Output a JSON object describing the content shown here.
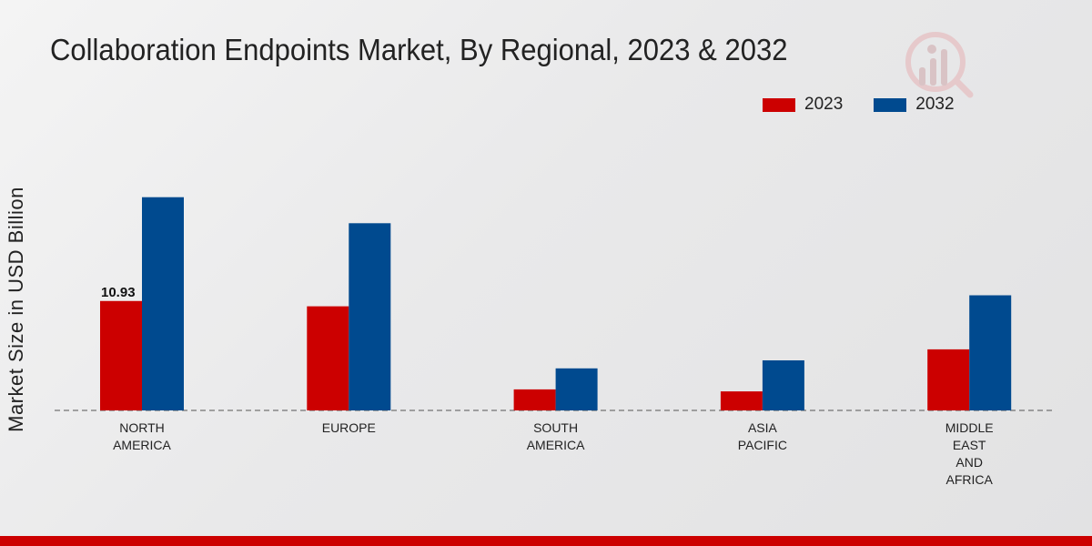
{
  "chart_data": {
    "type": "bar",
    "title": "Collaboration Endpoints Market, By Regional, 2023 & 2032",
    "xlabel": "",
    "ylabel": "Market Size in USD Billion",
    "categories": [
      [
        "NORTH",
        "AMERICA"
      ],
      [
        "EUROPE"
      ],
      [
        "SOUTH",
        "AMERICA"
      ],
      [
        "ASIA",
        "PACIFIC"
      ],
      [
        "MIDDLE",
        "EAST",
        "AND",
        "AFRICA"
      ]
    ],
    "series": [
      {
        "name": "2023",
        "color": "#cc0000",
        "values": [
          10.93,
          10.4,
          2.1,
          1.9,
          6.1
        ]
      },
      {
        "name": "2032",
        "color": "#004a8f",
        "values": [
          21.3,
          18.7,
          4.2,
          5.0,
          11.5
        ]
      }
    ],
    "data_labels": [
      {
        "series": 0,
        "index": 0,
        "text": "10.93"
      }
    ],
    "ylim": [
      0,
      33
    ],
    "grid": false,
    "legend": "top-right"
  }
}
